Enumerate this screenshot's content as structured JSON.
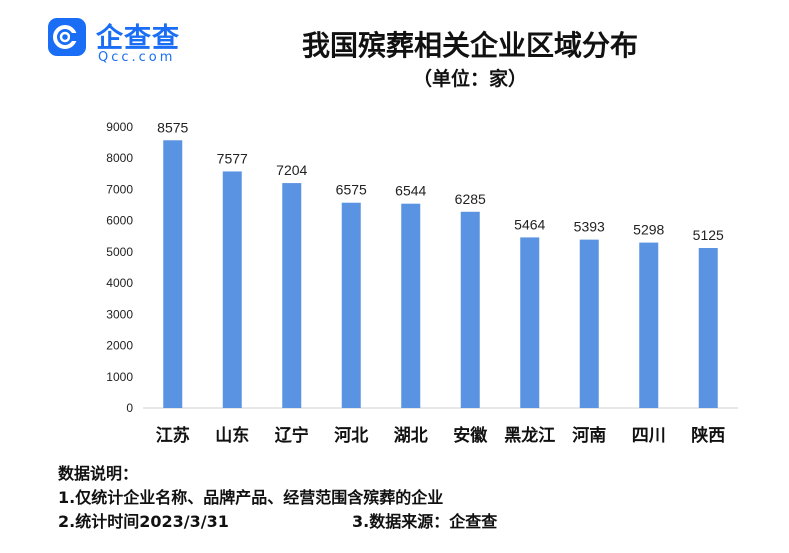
{
  "logo": {
    "brand": "企查查",
    "brand_sub": "Qcc.com",
    "accent": "#1a6ef5"
  },
  "chart_data": {
    "type": "bar",
    "title": "我国殡葬相关企业区域分布",
    "subtitle": "（单位：家）",
    "categories": [
      "江苏",
      "山东",
      "辽宁",
      "河北",
      "湖北",
      "安徽",
      "黑龙江",
      "河南",
      "四川",
      "陕西"
    ],
    "values": [
      8575,
      7577,
      7204,
      6575,
      6544,
      6285,
      5464,
      5393,
      5298,
      5125
    ],
    "ylim": [
      0,
      9000
    ],
    "yticks": [
      "0",
      "1000",
      "2000",
      "3000",
      "4000",
      "5000",
      "6000",
      "7000",
      "8000",
      "9000"
    ],
    "grid": false,
    "bar_color": "#5b93e3"
  },
  "notes": {
    "heading": "数据说明：",
    "line1": "1.仅统计企业名称、品牌产品、经营范围含殡葬的企业",
    "line2_left": "2.统计时间2023/3/31",
    "line2_right": "3.数据来源：企查查"
  }
}
